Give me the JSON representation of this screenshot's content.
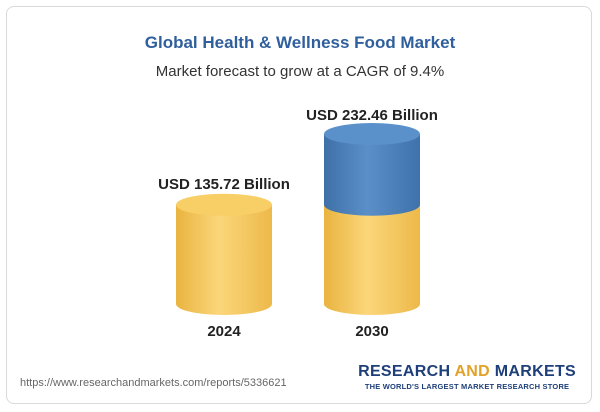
{
  "header": {
    "title": "Global Health & Wellness Food Market",
    "subtitle": "Market forecast to grow at a CAGR of 9.4%"
  },
  "chart_data": {
    "type": "bar",
    "title": "Global Health & Wellness Food Market",
    "subtitle": "Market forecast to grow at a CAGR of 9.4%",
    "categories": [
      "2024",
      "2030"
    ],
    "values": [
      135.72,
      232.46
    ],
    "unit": "USD Billion",
    "data_labels": [
      "USD 135.72 Billion",
      "USD 232.46 Billion"
    ],
    "growth_segment": {
      "base_value": 135.72,
      "increment": 96.74
    },
    "ylim": [
      0,
      232.46
    ],
    "grid": false,
    "legend": "none",
    "colors": {
      "base": "#f5c75c",
      "growth": "#4f84bd"
    }
  },
  "footer": {
    "source_url": "https://www.researchandmarkets.com/reports/5336621",
    "brand_part1": "RESEARCH ",
    "brand_part2": "AND",
    "brand_part3": " MARKETS",
    "brand_tagline": "THE WORLD'S LARGEST MARKET RESEARCH STORE"
  }
}
